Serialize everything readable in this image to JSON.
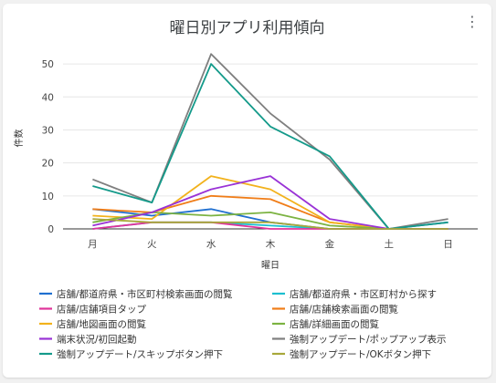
{
  "menu_icon": "more-vert-icon",
  "chart_data": {
    "type": "line",
    "title": "曜日別アプリ利用傾向",
    "xlabel": "曜日",
    "ylabel": "件数",
    "categories": [
      "月",
      "火",
      "水",
      "木",
      "金",
      "土",
      "日"
    ],
    "ylim": [
      0,
      55
    ],
    "yticks": [
      0,
      10,
      20,
      30,
      40,
      50
    ],
    "grid": true,
    "legend_position": "bottom",
    "series": [
      {
        "name": "店舗/都道府県・市区町村検索画面の閲覧",
        "color": "#1f6fd0",
        "values": [
          6,
          4,
          6,
          2,
          0,
          0,
          2
        ]
      },
      {
        "name": "店舗/都道府県・市区町村から探す",
        "color": "#1cbfd0",
        "values": [
          0,
          2,
          2,
          1,
          0,
          0,
          0
        ]
      },
      {
        "name": "店舗/店舗項目タップ",
        "color": "#e0339a",
        "values": [
          0,
          2,
          2,
          0,
          0,
          0,
          0
        ]
      },
      {
        "name": "店舗/店舗検索画面の閲覧",
        "color": "#f07d18",
        "values": [
          6,
          5,
          10,
          9,
          2,
          0,
          0
        ]
      },
      {
        "name": "店舗/地図画面の閲覧",
        "color": "#f2b21c",
        "values": [
          4,
          3,
          16,
          12,
          2,
          0,
          0
        ]
      },
      {
        "name": "店舗/詳細画面の閲覧",
        "color": "#7cb342",
        "values": [
          2,
          5,
          4,
          5,
          1,
          0,
          0
        ]
      },
      {
        "name": "端末状況/初回起動",
        "color": "#9932d6",
        "values": [
          1,
          5,
          12,
          16,
          3,
          0,
          0
        ]
      },
      {
        "name": "強制アップデート/ポップアップ表示",
        "color": "#7f7f7f",
        "values": [
          15,
          8,
          53,
          35,
          21,
          0,
          3
        ]
      },
      {
        "name": "強制アップデート/スキップボタン押下",
        "color": "#149a8a",
        "values": [
          13,
          8,
          50,
          31,
          22,
          0,
          2
        ]
      },
      {
        "name": "強制アップデート/OKボタン押下",
        "color": "#a8a83a",
        "values": [
          3,
          2,
          2,
          2,
          0,
          0,
          0
        ]
      }
    ]
  }
}
